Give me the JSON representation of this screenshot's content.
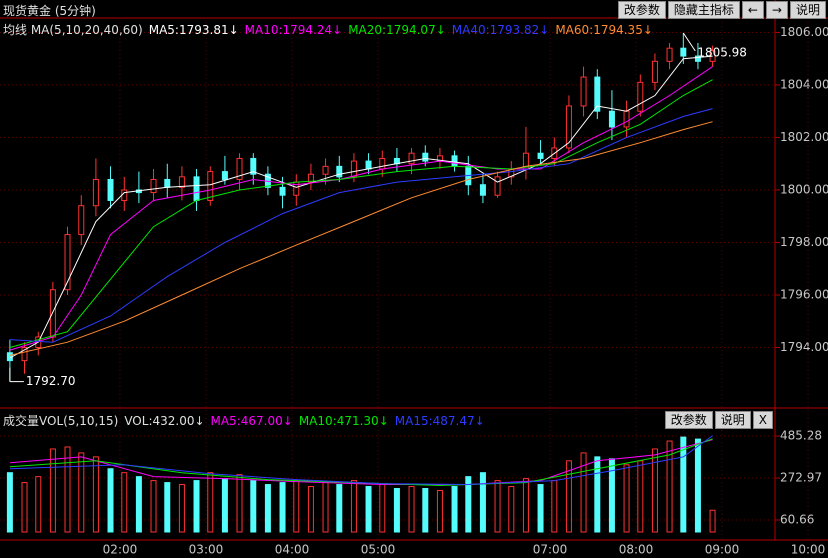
{
  "toolbar": {
    "buttons": [
      "改参数",
      "隐藏主指标",
      "←",
      "→",
      "说明"
    ]
  },
  "volume_toolbar": {
    "buttons": [
      "改参数",
      "说明",
      "X"
    ]
  },
  "chart_data": [
    {
      "type": "candlestick",
      "title": "现货黄金 (5分钟)",
      "legend_title": "均线 MA(5,10,20,40,60)",
      "up_color": "#ff3232",
      "down_color": "#54fcfc",
      "high_label": "1805.98",
      "low_label": "1792.70",
      "xlim": [
        0.605,
        9.616
      ],
      "ylim": [
        1792,
        1806.55
      ],
      "grid": true,
      "yticks": [
        {
          "value": 1794,
          "label": "1794.00"
        },
        {
          "value": 1796,
          "label": "1796.00"
        },
        {
          "value": 1798,
          "label": "1798.00"
        },
        {
          "value": 1800,
          "label": "1800.00"
        },
        {
          "value": 1802,
          "label": "1802.00"
        },
        {
          "value": 1804,
          "label": "1804.00"
        },
        {
          "value": 1806,
          "label": "1806.00"
        }
      ],
      "x": [
        0.72,
        0.89,
        1.05,
        1.22,
        1.39,
        1.55,
        1.72,
        1.89,
        2.05,
        2.22,
        2.39,
        2.55,
        2.72,
        2.89,
        3.05,
        3.22,
        3.39,
        3.55,
        3.72,
        3.89,
        4.05,
        4.22,
        4.39,
        4.55,
        4.72,
        4.89,
        5.05,
        5.22,
        5.39,
        5.55,
        5.72,
        5.89,
        6.05,
        6.22,
        6.39,
        6.55,
        6.72,
        6.89,
        7.05,
        7.22,
        7.39,
        7.55,
        7.72,
        7.89,
        8.05,
        8.22,
        8.39,
        8.55,
        8.72,
        8.89
      ],
      "open": [
        1793.8,
        1793.5,
        1794.0,
        1794.4,
        1796.2,
        1798.3,
        1799.4,
        1800.4,
        1799.6,
        1800.0,
        1799.9,
        1800.4,
        1800.1,
        1800.5,
        1799.6,
        1800.7,
        1800.4,
        1801.2,
        1800.6,
        1800.1,
        1799.8,
        1800.3,
        1800.6,
        1800.9,
        1800.5,
        1801.1,
        1800.8,
        1801.2,
        1801.0,
        1801.4,
        1801.1,
        1801.3,
        1800.9,
        1800.2,
        1799.8,
        1800.5,
        1800.8,
        1801.4,
        1801.2,
        1801.6,
        1803.2,
        1804.3,
        1803.0,
        1802.4,
        1803.0,
        1804.1,
        1804.9,
        1805.4,
        1805.1,
        1804.9
      ],
      "high": [
        1794.3,
        1794.2,
        1794.6,
        1796.5,
        1798.6,
        1799.8,
        1801.2,
        1800.9,
        1800.5,
        1800.7,
        1800.8,
        1801.0,
        1800.9,
        1800.8,
        1800.9,
        1801.3,
        1801.4,
        1801.4,
        1800.9,
        1800.5,
        1800.6,
        1801.0,
        1801.2,
        1801.3,
        1801.4,
        1801.4,
        1801.5,
        1801.6,
        1801.6,
        1801.7,
        1801.6,
        1801.5,
        1801.3,
        1800.6,
        1800.7,
        1801.1,
        1802.4,
        1801.9,
        1802.0,
        1803.6,
        1804.7,
        1804.6,
        1803.8,
        1803.4,
        1804.4,
        1805.2,
        1805.6,
        1805.98,
        1805.6,
        1805.5
      ],
      "low": [
        1792.7,
        1793.0,
        1793.7,
        1794.2,
        1796.0,
        1797.9,
        1799.0,
        1799.3,
        1799.2,
        1799.5,
        1799.6,
        1799.7,
        1799.6,
        1799.2,
        1799.4,
        1800.2,
        1800.0,
        1800.2,
        1799.8,
        1799.3,
        1799.4,
        1800.0,
        1800.2,
        1800.3,
        1800.3,
        1800.6,
        1800.5,
        1800.7,
        1800.6,
        1800.9,
        1800.8,
        1800.7,
        1799.8,
        1799.5,
        1799.7,
        1800.2,
        1800.4,
        1801.0,
        1800.9,
        1801.4,
        1802.8,
        1802.7,
        1801.9,
        1802.0,
        1802.8,
        1803.8,
        1804.6,
        1804.8,
        1804.6,
        1804.7
      ],
      "close": [
        1793.5,
        1794.0,
        1794.4,
        1796.2,
        1798.3,
        1799.4,
        1800.4,
        1799.6,
        1800.0,
        1799.9,
        1800.4,
        1800.1,
        1800.5,
        1799.6,
        1800.7,
        1800.4,
        1801.2,
        1800.6,
        1800.1,
        1799.8,
        1800.3,
        1800.6,
        1800.9,
        1800.5,
        1801.1,
        1800.8,
        1801.2,
        1801.0,
        1801.4,
        1801.1,
        1801.3,
        1800.9,
        1800.2,
        1799.8,
        1800.5,
        1800.8,
        1801.4,
        1801.2,
        1801.6,
        1803.2,
        1804.3,
        1803.0,
        1802.4,
        1803.0,
        1804.1,
        1804.9,
        1805.4,
        1805.1,
        1804.9,
        1805.3
      ],
      "series": [
        {
          "name": "MA5:1793.81↓",
          "color": "#ffffff",
          "x": [
            0.72,
            1.05,
            1.39,
            1.72,
            2.05,
            2.55,
            3.05,
            3.55,
            4.05,
            4.55,
            5.05,
            5.55,
            6.05,
            6.39,
            6.89,
            7.22,
            7.55,
            7.89,
            8.22,
            8.55,
            8.89
          ],
          "values": [
            1793.6,
            1794.2,
            1796.5,
            1798.8,
            1799.9,
            1800.1,
            1800.2,
            1800.7,
            1800.1,
            1800.6,
            1800.9,
            1801.2,
            1801.0,
            1800.3,
            1801.0,
            1801.8,
            1803.2,
            1803.0,
            1803.6,
            1805.0,
            1805.1
          ]
        },
        {
          "name": "MA10:1794.24↓",
          "color": "#ff00ff",
          "x": [
            0.72,
            1.22,
            1.55,
            1.89,
            2.39,
            3.05,
            3.55,
            4.05,
            4.55,
            5.05,
            5.72,
            6.39,
            6.89,
            7.39,
            7.89,
            8.39,
            8.89
          ],
          "values": [
            1793.9,
            1794.4,
            1796.0,
            1798.3,
            1799.6,
            1800.0,
            1800.4,
            1800.2,
            1800.4,
            1800.8,
            1801.1,
            1800.8,
            1800.8,
            1801.8,
            1802.6,
            1803.6,
            1804.7
          ]
        },
        {
          "name": "MA20:1794.07↓",
          "color": "#00e600",
          "x": [
            0.72,
            1.39,
            1.89,
            2.39,
            2.89,
            3.39,
            4.05,
            4.55,
            5.22,
            5.89,
            6.55,
            7.05,
            7.55,
            8.05,
            8.55,
            8.89
          ],
          "values": [
            1794.0,
            1794.6,
            1796.6,
            1798.6,
            1799.6,
            1800.0,
            1800.3,
            1800.4,
            1800.7,
            1800.9,
            1800.8,
            1801.0,
            1801.8,
            1802.5,
            1803.6,
            1804.2
          ]
        },
        {
          "name": "MA40:1793.82↓",
          "color": "#2d3cff",
          "x": [
            0.72,
            1.22,
            1.89,
            2.55,
            3.22,
            3.89,
            4.55,
            5.22,
            5.89,
            6.55,
            7.22,
            7.89,
            8.55,
            8.89
          ],
          "values": [
            1794.3,
            1794.2,
            1795.2,
            1796.7,
            1798.0,
            1799.1,
            1799.9,
            1800.3,
            1800.5,
            1800.7,
            1801.0,
            1802.0,
            1802.8,
            1803.1
          ]
        },
        {
          "name": "MA60:1794.35↓",
          "color": "#ff8c32",
          "x": [
            0.72,
            1.39,
            2.05,
            2.72,
            3.39,
            4.05,
            4.72,
            5.39,
            6.05,
            6.72,
            7.39,
            8.05,
            8.55,
            8.89
          ],
          "values": [
            1793.7,
            1794.2,
            1795.0,
            1796.0,
            1797.0,
            1797.9,
            1798.8,
            1799.7,
            1800.4,
            1800.9,
            1801.2,
            1801.8,
            1802.3,
            1802.6
          ]
        }
      ]
    },
    {
      "type": "volume",
      "title": "成交量",
      "legend_title": "VOL(5,10,15)",
      "current_label": "VOL:432.00↓",
      "ylim": [
        0,
        526
      ],
      "yticks": [
        60.66,
        272.97,
        485.28
      ],
      "xticks": [
        {
          "value": 2,
          "label": "02:00"
        },
        {
          "value": 3,
          "label": "03:00"
        },
        {
          "value": 4,
          "label": "04:00"
        },
        {
          "value": 5,
          "label": "05:00"
        },
        {
          "value": 7,
          "label": "07:00"
        },
        {
          "value": 8,
          "label": "08:00"
        },
        {
          "value": 9,
          "label": "09:00"
        },
        {
          "value": 10,
          "label": "10:00"
        }
      ],
      "values": [
        300,
        250,
        280,
        420,
        430,
        400,
        380,
        320,
        300,
        280,
        260,
        250,
        240,
        260,
        300,
        270,
        290,
        260,
        240,
        250,
        260,
        230,
        250,
        240,
        260,
        230,
        240,
        220,
        230,
        220,
        210,
        230,
        280,
        300,
        260,
        230,
        270,
        240,
        260,
        360,
        400,
        380,
        370,
        340,
        360,
        420,
        460,
        480,
        470,
        110
      ],
      "series": [
        {
          "name": "MA5:467.00↓",
          "color": "#ff00ff",
          "x": [
            0.72,
            1.55,
            2.39,
            3.22,
            4.05,
            5.05,
            6.05,
            6.89,
            7.55,
            8.22,
            8.89
          ],
          "values": [
            350,
            380,
            280,
            270,
            255,
            240,
            240,
            260,
            360,
            390,
            467
          ]
        },
        {
          "name": "MA10:471.30↓",
          "color": "#00e600",
          "x": [
            0.72,
            1.72,
            2.72,
            3.72,
            4.72,
            5.72,
            6.72,
            7.55,
            8.39,
            8.89
          ],
          "values": [
            330,
            360,
            300,
            265,
            250,
            235,
            250,
            320,
            390,
            471.3
          ]
        },
        {
          "name": "MA15:487.47↓",
          "color": "#2d3cff",
          "x": [
            0.72,
            2.05,
            3.05,
            4.05,
            5.05,
            6.05,
            7.05,
            7.72,
            8.55,
            8.89
          ],
          "values": [
            320,
            340,
            295,
            265,
            245,
            240,
            260,
            310,
            380,
            487.47
          ]
        }
      ]
    }
  ]
}
